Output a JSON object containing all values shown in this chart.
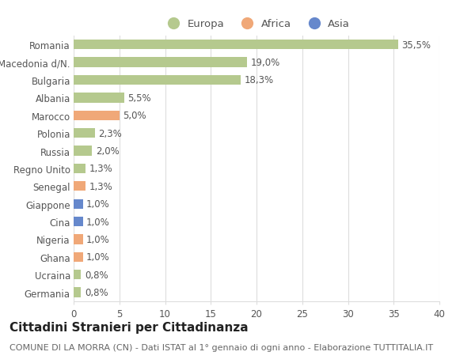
{
  "countries": [
    "Romania",
    "Macedonia d/N.",
    "Bulgaria",
    "Albania",
    "Marocco",
    "Polonia",
    "Russia",
    "Regno Unito",
    "Senegal",
    "Giappone",
    "Cina",
    "Nigeria",
    "Ghana",
    "Ucraina",
    "Germania"
  ],
  "values": [
    35.5,
    19.0,
    18.3,
    5.5,
    5.0,
    2.3,
    2.0,
    1.3,
    1.3,
    1.0,
    1.0,
    1.0,
    1.0,
    0.8,
    0.8
  ],
  "labels": [
    "35,5%",
    "19,0%",
    "18,3%",
    "5,5%",
    "5,0%",
    "2,3%",
    "2,0%",
    "1,3%",
    "1,3%",
    "1,0%",
    "1,0%",
    "1,0%",
    "1,0%",
    "0,8%",
    "0,8%"
  ],
  "continents": [
    "Europa",
    "Europa",
    "Europa",
    "Europa",
    "Africa",
    "Europa",
    "Europa",
    "Europa",
    "Africa",
    "Asia",
    "Asia",
    "Africa",
    "Africa",
    "Europa",
    "Europa"
  ],
  "colors": {
    "Europa": "#b5c98e",
    "Africa": "#f0a878",
    "Asia": "#6688cc"
  },
  "legend_labels": [
    "Europa",
    "Africa",
    "Asia"
  ],
  "legend_colors": [
    "#b5c98e",
    "#f0a878",
    "#6688cc"
  ],
  "title": "Cittadini Stranieri per Cittadinanza",
  "subtitle": "COMUNE DI LA MORRA (CN) - Dati ISTAT al 1° gennaio di ogni anno - Elaborazione TUTTITALIA.IT",
  "xlabel_ticks": [
    0,
    5,
    10,
    15,
    20,
    25,
    30,
    35,
    40
  ],
  "xlim": [
    0,
    40
  ],
  "background_color": "#ffffff",
  "grid_color": "#dddddd",
  "bar_height": 0.55,
  "label_fontsize": 8.5,
  "tick_fontsize": 8.5,
  "title_fontsize": 11,
  "subtitle_fontsize": 8
}
